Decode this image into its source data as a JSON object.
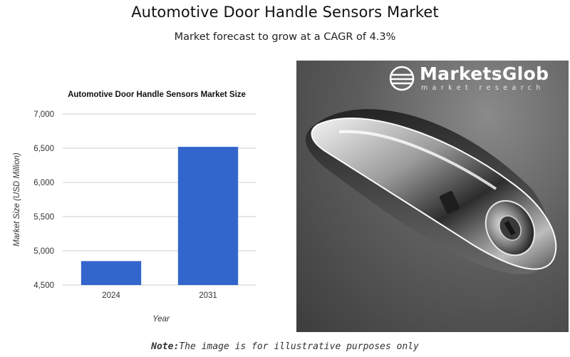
{
  "header": {
    "title": "Automotive Door Handle Sensors Market",
    "subtitle": "Market forecast to grow at a CAGR of 4.3%"
  },
  "chart_data": {
    "type": "bar",
    "title": "Automotive Door Handle Sensors Market Size",
    "xlabel": "Year",
    "ylabel": "Market Size (USD Million)",
    "categories": [
      "2024",
      "2031"
    ],
    "values": [
      4850,
      6520
    ],
    "ylim": [
      4500,
      7000
    ],
    "yticks": [
      4500,
      5000,
      5500,
      6000,
      6500,
      7000
    ],
    "ytick_labels": [
      "4,500",
      "5,000",
      "5,500",
      "6,000",
      "6,500",
      "7,000"
    ],
    "bar_color": "#3366cc",
    "grid": true
  },
  "image": {
    "logo_name": "MarketsGlob",
    "logo_tagline": "market research",
    "logo_icon": "globe-icon"
  },
  "note": {
    "label": "Note:",
    "text": "The image is for illustrative purposes only"
  }
}
